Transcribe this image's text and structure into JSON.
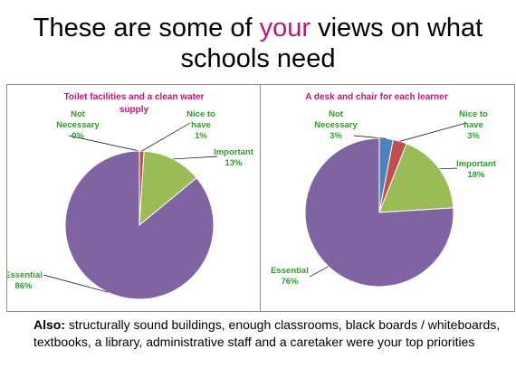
{
  "slide": {
    "title_before": "These are some of ",
    "title_highlight": "your",
    "title_after": " views on what schools need",
    "highlight_color": "#c0147a"
  },
  "chart_data": [
    {
      "type": "pie",
      "title_lines": [
        "Toilet facilities and a clean water",
        "supply"
      ],
      "slices": [
        {
          "name": "Not Necessary",
          "value": 0,
          "label_lines": [
            "Not",
            "Necessary",
            "0%"
          ],
          "color": "#c0504d"
        },
        {
          "name": "Nice to have",
          "value": 1,
          "label_lines": [
            "Nice to",
            "have",
            "1%"
          ],
          "color": "#c0504d"
        },
        {
          "name": "Important",
          "value": 13,
          "label_lines": [
            "Important",
            "13%"
          ],
          "color": "#9bbb59"
        },
        {
          "name": "Essential",
          "value": 86,
          "label_lines": [
            "Essential",
            "86%"
          ],
          "color": "#8064a2"
        }
      ]
    },
    {
      "type": "pie",
      "title_lines": [
        "A desk and chair for each learner"
      ],
      "slices": [
        {
          "name": "Not Necessary",
          "value": 3,
          "label_lines": [
            "Not",
            "Necessary",
            "3%"
          ],
          "color": "#4f81bd"
        },
        {
          "name": "Nice to have",
          "value": 3,
          "label_lines": [
            "Nice to",
            "have",
            "3%"
          ],
          "color": "#c0504d"
        },
        {
          "name": "Important",
          "value": 18,
          "label_lines": [
            "Important",
            "18%"
          ],
          "color": "#9bbb59"
        },
        {
          "name": "Essential",
          "value": 76,
          "label_lines": [
            "Essential",
            "76%"
          ],
          "color": "#8064a2"
        }
      ]
    }
  ],
  "footer": {
    "bold": "Also:",
    "text": " structurally sound buildings, enough classrooms, black boards / whiteboards, textbooks, a library, administrative staff and a caretaker were your top priorities"
  }
}
